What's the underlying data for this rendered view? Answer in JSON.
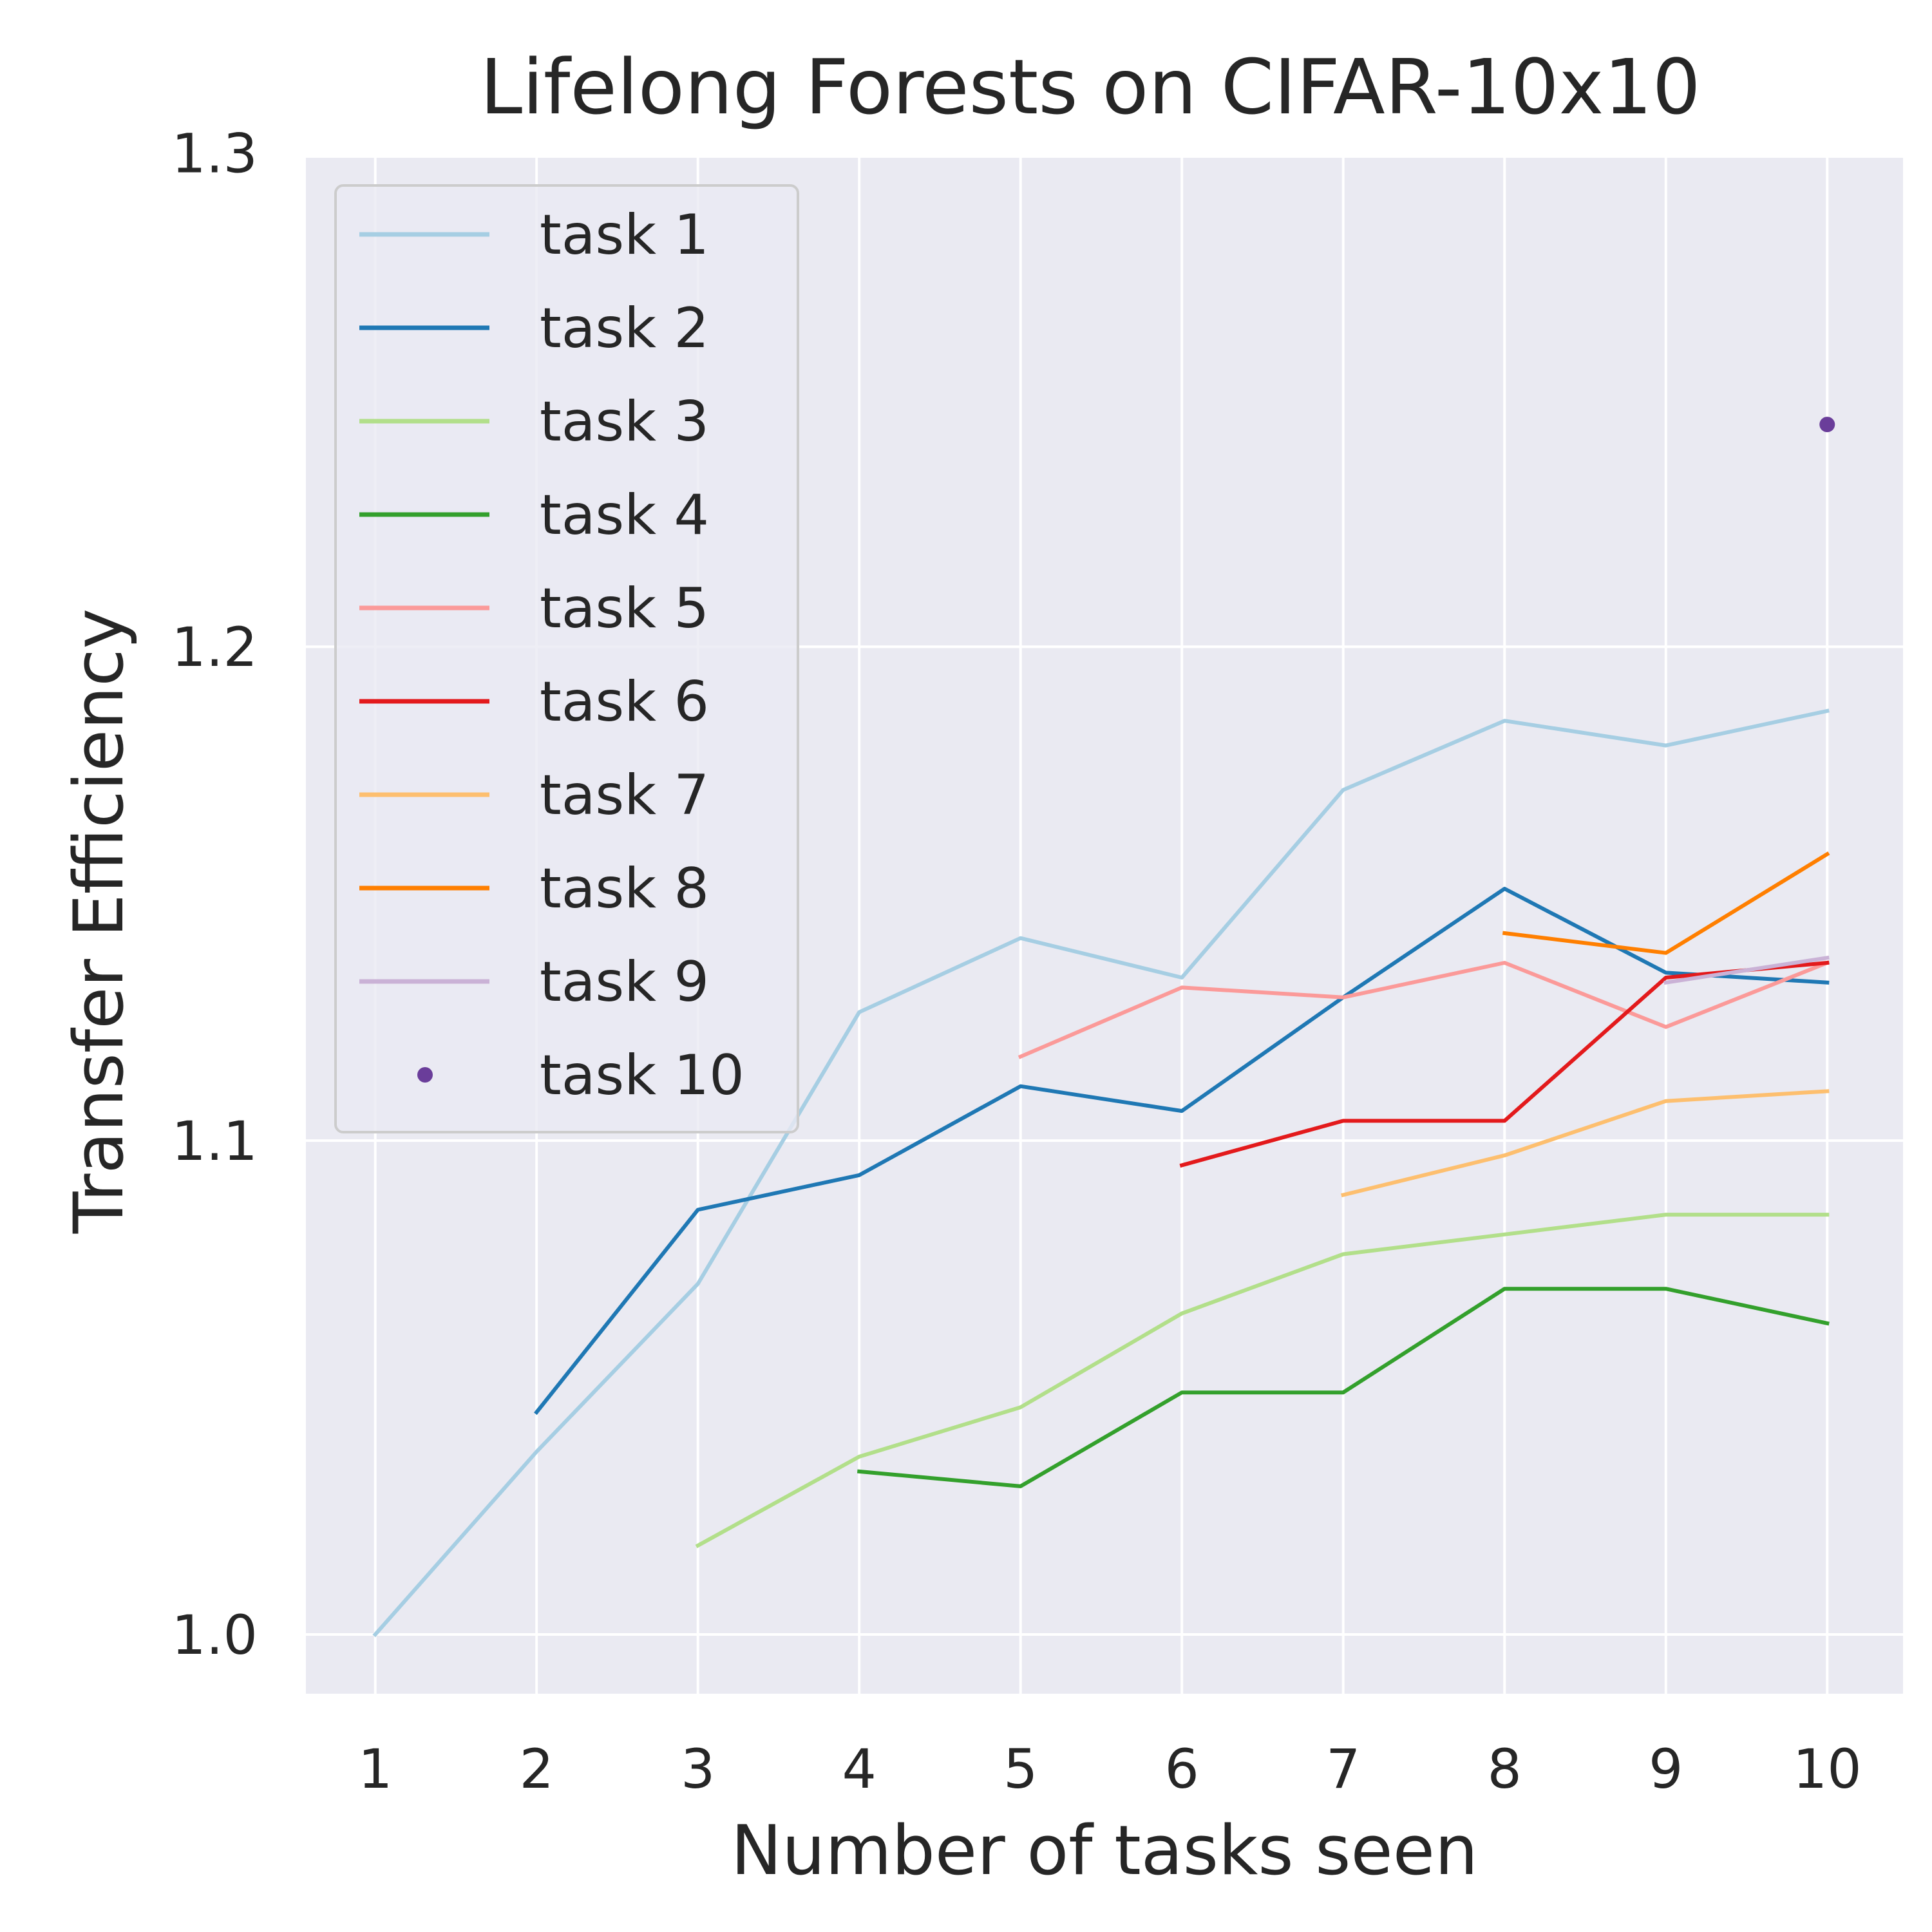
{
  "chart_data": {
    "type": "line",
    "title": "Lifelong Forests on CIFAR-10x10",
    "xlabel": "Number of tasks seen",
    "ylabel": "Transfer Efficiency",
    "xlim": [
      0.57,
      10.47
    ],
    "ylim": [
      0.988,
      1.299
    ],
    "x_ticks": [
      1,
      2,
      3,
      4,
      5,
      6,
      7,
      8,
      9,
      10
    ],
    "x_tick_labels": [
      "1",
      "2",
      "3",
      "4",
      "5",
      "6",
      "7",
      "8",
      "9",
      "10"
    ],
    "y_ticks": [
      1.0,
      1.1,
      1.2,
      1.3
    ],
    "y_tick_labels": [
      "1.0",
      "1.1",
      "1.2",
      "1.3"
    ],
    "grid": true,
    "legend_position": "top-left",
    "background": "#eaeaf2",
    "series": [
      {
        "name": "task 1",
        "color": "#a6cee3",
        "style": "line",
        "x": [
          1,
          2,
          3,
          4,
          5,
          6,
          7,
          8,
          9,
          10
        ],
        "y": [
          1.0,
          1.037,
          1.071,
          1.126,
          1.141,
          1.133,
          1.171,
          1.185,
          1.18,
          1.187
        ]
      },
      {
        "name": "task 2",
        "color": "#1f78b4",
        "style": "line",
        "x": [
          2,
          3,
          4,
          5,
          6,
          7,
          8,
          9,
          10
        ],
        "y": [
          1.045,
          1.086,
          1.093,
          1.111,
          1.106,
          1.129,
          1.151,
          1.134,
          1.132
        ]
      },
      {
        "name": "task 3",
        "color": "#b2df8a",
        "style": "line",
        "x": [
          3,
          4,
          5,
          6,
          7,
          8,
          9,
          10
        ],
        "y": [
          1.018,
          1.036,
          1.046,
          1.065,
          1.077,
          1.081,
          1.085,
          1.085
        ]
      },
      {
        "name": "task 4",
        "color": "#33a02c",
        "style": "line",
        "x": [
          4,
          5,
          6,
          7,
          8,
          9,
          10
        ],
        "y": [
          1.033,
          1.03,
          1.049,
          1.049,
          1.07,
          1.07,
          1.063
        ]
      },
      {
        "name": "task 5",
        "color": "#fb9a99",
        "style": "line",
        "x": [
          5,
          6,
          7,
          8,
          9,
          10
        ],
        "y": [
          1.117,
          1.131,
          1.129,
          1.136,
          1.123,
          1.136
        ]
      },
      {
        "name": "task 6",
        "color": "#e31a1c",
        "style": "line",
        "x": [
          6,
          7,
          8,
          9,
          10
        ],
        "y": [
          1.095,
          1.104,
          1.104,
          1.133,
          1.136
        ]
      },
      {
        "name": "task 7",
        "color": "#fdbf6f",
        "style": "line",
        "x": [
          7,
          8,
          9,
          10
        ],
        "y": [
          1.089,
          1.097,
          1.108,
          1.11
        ]
      },
      {
        "name": "task 8",
        "color": "#ff7f00",
        "style": "line",
        "x": [
          8,
          9,
          10
        ],
        "y": [
          1.142,
          1.138,
          1.158
        ]
      },
      {
        "name": "task 9",
        "color": "#cab2d6",
        "style": "line",
        "x": [
          9,
          10
        ],
        "y": [
          1.132,
          1.137
        ]
      },
      {
        "name": "task 10",
        "color": "#6a3d9a",
        "style": "point",
        "x": [
          10
        ],
        "y": [
          1.245
        ]
      }
    ]
  }
}
